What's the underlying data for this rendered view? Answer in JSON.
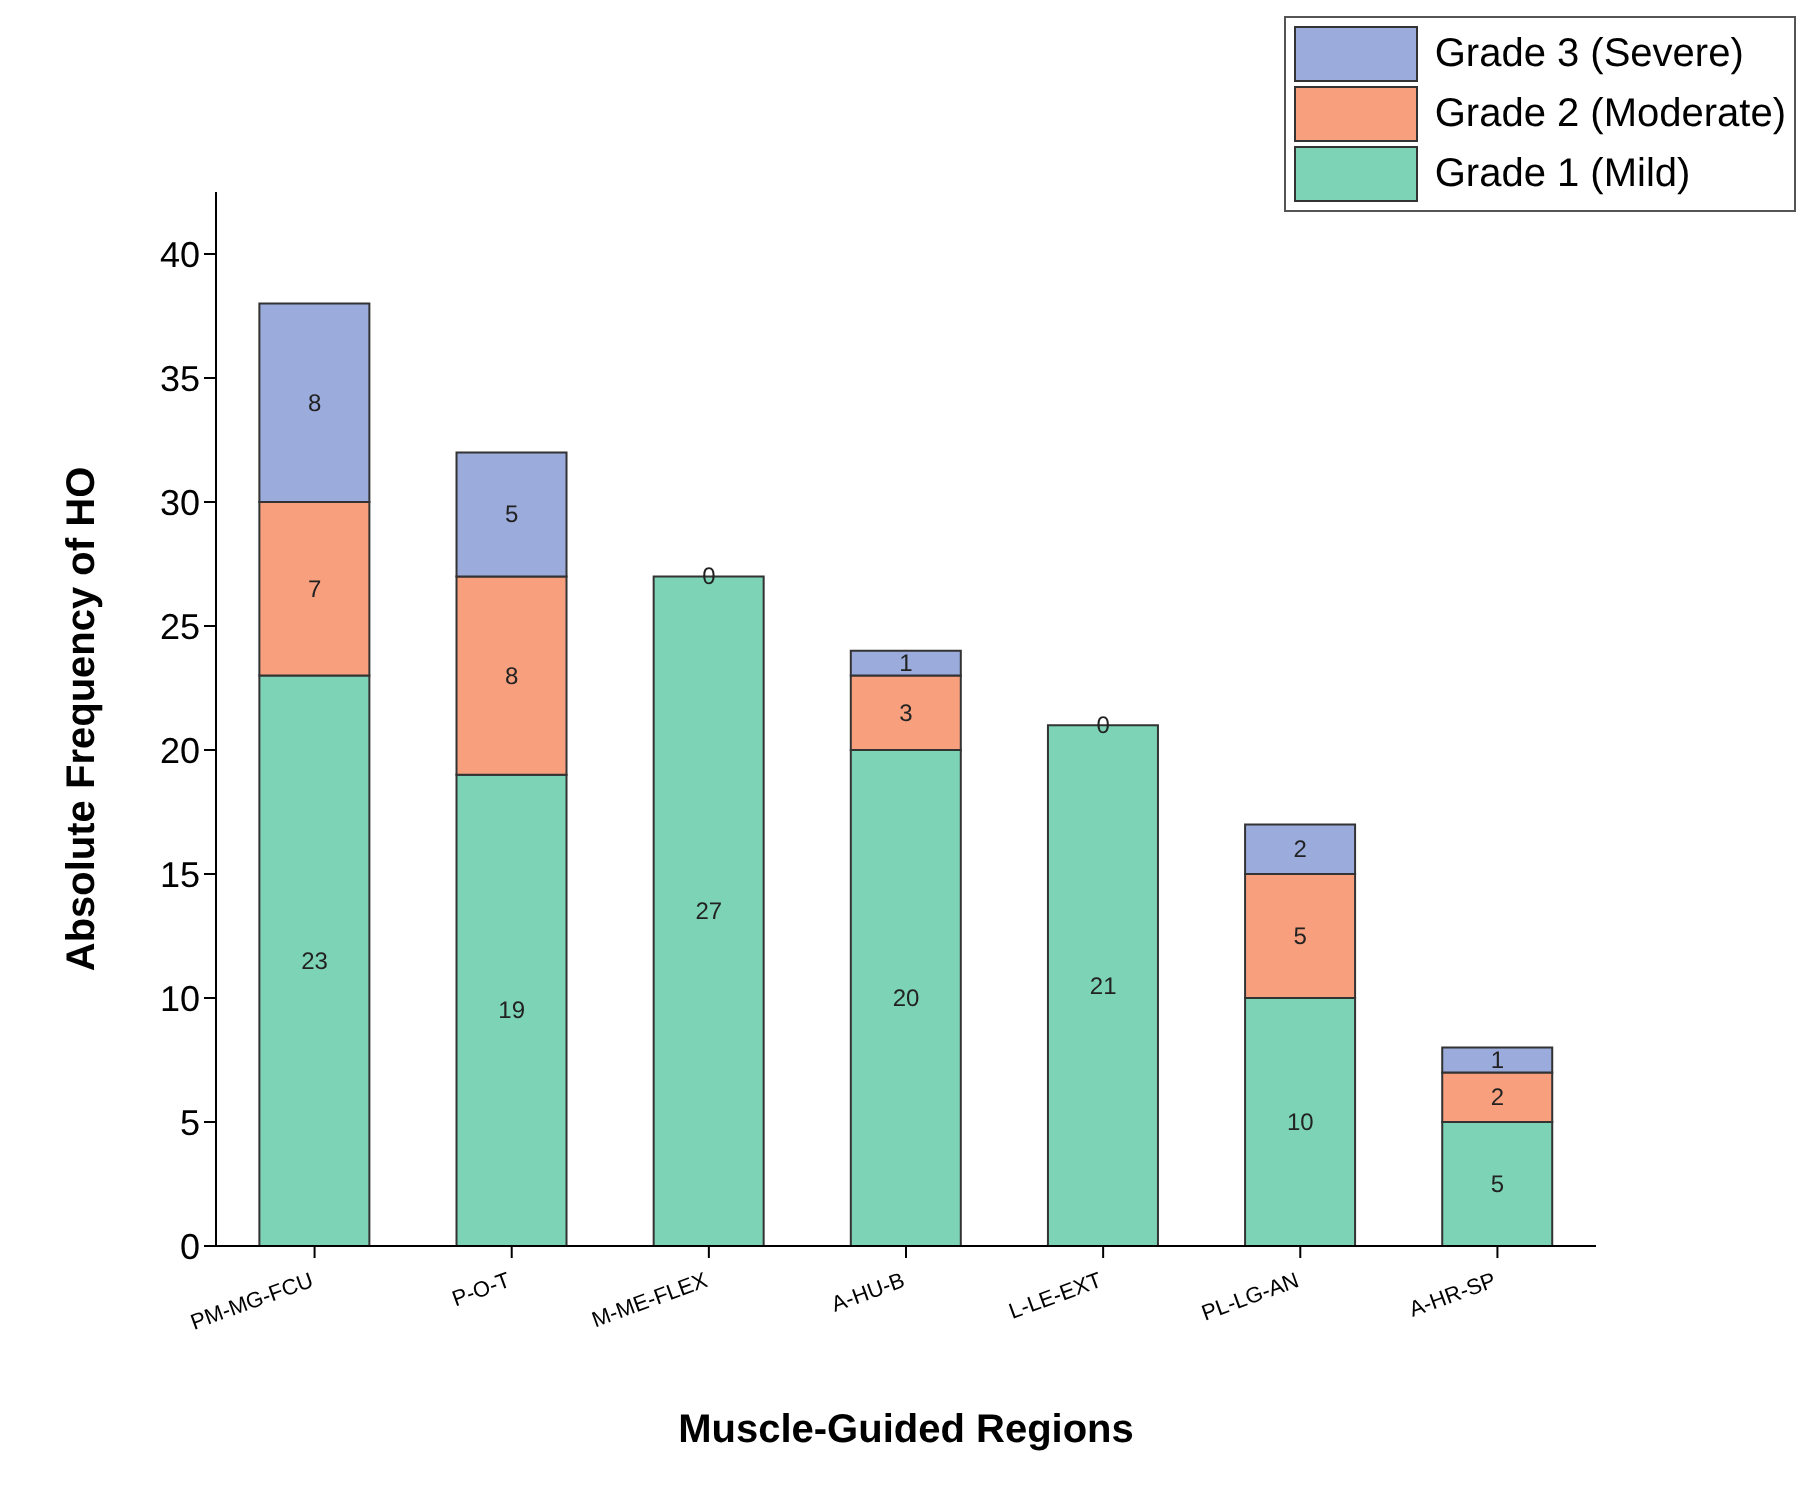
{
  "chart_data": {
    "type": "bar",
    "stacked": true,
    "xlabel": "Muscle-Guided Regions",
    "ylabel": "Absolute Frequency of HO",
    "categories": [
      "PM-MG-FCU",
      "P-O-T",
      "M-ME-FLEX",
      "A-HU-B",
      "L-LE-EXT",
      "PL-LG-AN",
      "A-HR-SP"
    ],
    "series": [
      {
        "name": "Grade 1 (Mild)",
        "color": "#7dd3b5",
        "values": [
          23,
          19,
          27,
          20,
          21,
          10,
          5
        ],
        "value_labels": [
          "23",
          "19",
          "27",
          "20",
          "21",
          "10",
          "5"
        ]
      },
      {
        "name": "Grade 2 (Moderate)",
        "color": "#f8a07e",
        "values": [
          7,
          8,
          0,
          3,
          0,
          5,
          2
        ],
        "value_labels": [
          "7",
          "8",
          "0",
          "3",
          "0",
          "5",
          "2"
        ]
      },
      {
        "name": "Grade 3 (Severe)",
        "color": "#9aabdc",
        "values": [
          8,
          5,
          0,
          1,
          0,
          2,
          1
        ],
        "value_labels": [
          "8",
          "5",
          null,
          "1",
          null,
          "2",
          "1"
        ]
      }
    ],
    "ylim": [
      0,
      42.5
    ],
    "yticks": [
      0,
      5,
      10,
      15,
      20,
      25,
      30,
      35,
      40
    ],
    "legend": "top right",
    "grid": false
  }
}
